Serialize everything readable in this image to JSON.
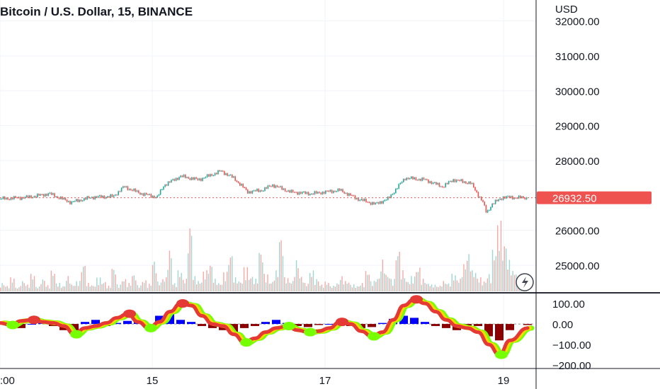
{
  "chart_data": [
    {
      "type": "candlestick",
      "title": "Bitcoin / U.S. Dollar, 15, BINANCE",
      "currency": "USD",
      "y_ticks": [
        32000,
        31000,
        30000,
        29000,
        28000,
        26000,
        25000
      ],
      "y_tick_labels": [
        "32000.00",
        "31000.00",
        "30000.00",
        "29000.00",
        "28000.00",
        "26000.00",
        "25000.00"
      ],
      "ylim": [
        24250,
        32600
      ],
      "last_price": 26932.5,
      "last_price_label": "26932.50",
      "x_tick_labels": [
        ":00",
        "15",
        "17",
        "19"
      ],
      "colors": {
        "up": "#26a69a",
        "down": "#ef5350",
        "price_tag": "#ef5350"
      },
      "price_series": [
        {
          "x": 0,
          "close": 26900
        },
        {
          "x": 40,
          "close": 26950
        },
        {
          "x": 70,
          "close": 27050
        },
        {
          "x": 100,
          "close": 26800
        },
        {
          "x": 130,
          "close": 26950
        },
        {
          "x": 160,
          "close": 26970
        },
        {
          "x": 175,
          "close": 27250
        },
        {
          "x": 200,
          "close": 27050
        },
        {
          "x": 222,
          "close": 26950
        },
        {
          "x": 232,
          "close": 27300
        },
        {
          "x": 255,
          "close": 27550
        },
        {
          "x": 280,
          "close": 27450
        },
        {
          "x": 300,
          "close": 27600
        },
        {
          "x": 312,
          "close": 27700
        },
        {
          "x": 330,
          "close": 27500
        },
        {
          "x": 350,
          "close": 27100
        },
        {
          "x": 370,
          "close": 27150
        },
        {
          "x": 385,
          "close": 27300
        },
        {
          "x": 410,
          "close": 27100
        },
        {
          "x": 440,
          "close": 27050
        },
        {
          "x": 480,
          "close": 27150
        },
        {
          "x": 505,
          "close": 26900
        },
        {
          "x": 530,
          "close": 26750
        },
        {
          "x": 548,
          "close": 26900
        },
        {
          "x": 560,
          "close": 27200
        },
        {
          "x": 572,
          "close": 27500
        },
        {
          "x": 600,
          "close": 27450
        },
        {
          "x": 625,
          "close": 27250
        },
        {
          "x": 640,
          "close": 27450
        },
        {
          "x": 665,
          "close": 27350
        },
        {
          "x": 682,
          "close": 26800
        },
        {
          "x": 687,
          "close": 26500
        },
        {
          "x": 695,
          "close": 26750
        },
        {
          "x": 710,
          "close": 26950
        },
        {
          "x": 745,
          "close": 26930
        }
      ]
    },
    {
      "type": "bar",
      "name": "volume",
      "ylim": [
        0,
        100
      ],
      "values": [
        12,
        8,
        20,
        6,
        15,
        10,
        25,
        7,
        18,
        9,
        30,
        12,
        8,
        22,
        10,
        15,
        40,
        12,
        9,
        20,
        14,
        8,
        35,
        10,
        18,
        12,
        25,
        9,
        16,
        11,
        45,
        14,
        20,
        60,
        12,
        30,
        18,
        95,
        22,
        15,
        30,
        40,
        18,
        12,
        28,
        55,
        20,
        15,
        35,
        22,
        18,
        60,
        25,
        14,
        30,
        80,
        20,
        15,
        45,
        22,
        12,
        30,
        18,
        10,
        14,
        8,
        12,
        22,
        15,
        10,
        8,
        12,
        30,
        15,
        20,
        45,
        25,
        18,
        60,
        30,
        15,
        22,
        35,
        18,
        12,
        10,
        8,
        15,
        12,
        25,
        18,
        40,
        55,
        30,
        20,
        15,
        25,
        60,
        100,
        70,
        45,
        30,
        20,
        12
      ]
    },
    {
      "type": "line",
      "name": "oscillator",
      "y_ticks": [
        100,
        0,
        -100,
        -200
      ],
      "y_tick_labels": [
        "100.00",
        "0.00",
        "−100.00",
        "−200.00"
      ],
      "ylim": [
        -210,
        145
      ],
      "x": [
        0,
        15,
        30,
        45,
        60,
        75,
        90,
        105,
        120,
        135,
        150,
        165,
        180,
        195,
        210,
        225,
        240,
        255,
        270,
        285,
        300,
        315,
        330,
        345,
        360,
        375,
        390,
        405,
        420,
        435,
        450,
        465,
        480,
        495,
        510,
        525,
        540,
        555,
        570,
        585,
        600,
        615,
        630,
        645,
        660,
        675,
        690,
        705,
        720,
        745
      ],
      "values": [
        5,
        -5,
        15,
        20,
        10,
        5,
        -10,
        -50,
        -20,
        -10,
        5,
        30,
        50,
        10,
        -20,
        10,
        60,
        100,
        90,
        40,
        0,
        -10,
        -50,
        -90,
        -70,
        -40,
        -20,
        -10,
        -30,
        -40,
        -35,
        -20,
        10,
        0,
        -35,
        -60,
        -40,
        20,
        90,
        120,
        100,
        60,
        20,
        -10,
        -20,
        -40,
        -100,
        -150,
        -80,
        -20
      ],
      "histogram": [
        10,
        5,
        -20,
        0,
        5,
        -10,
        -30,
        -40,
        10,
        20,
        -10,
        5,
        15,
        10,
        -20,
        40,
        50,
        20,
        10,
        -10,
        -20,
        -30,
        -40,
        -20,
        -10,
        10,
        20,
        5,
        -10,
        -15,
        -5,
        0,
        15,
        -10,
        -20,
        -15,
        5,
        25,
        40,
        30,
        10,
        -10,
        -20,
        -30,
        -15,
        -10,
        -60,
        -80,
        -30,
        -5
      ],
      "colors": {
        "line_red": "#e53935",
        "line_yellow": "#ffd600",
        "line_green": "#76ff03",
        "hist_pos": "#0000ff",
        "hist_neg": "#8b0000"
      }
    }
  ]
}
